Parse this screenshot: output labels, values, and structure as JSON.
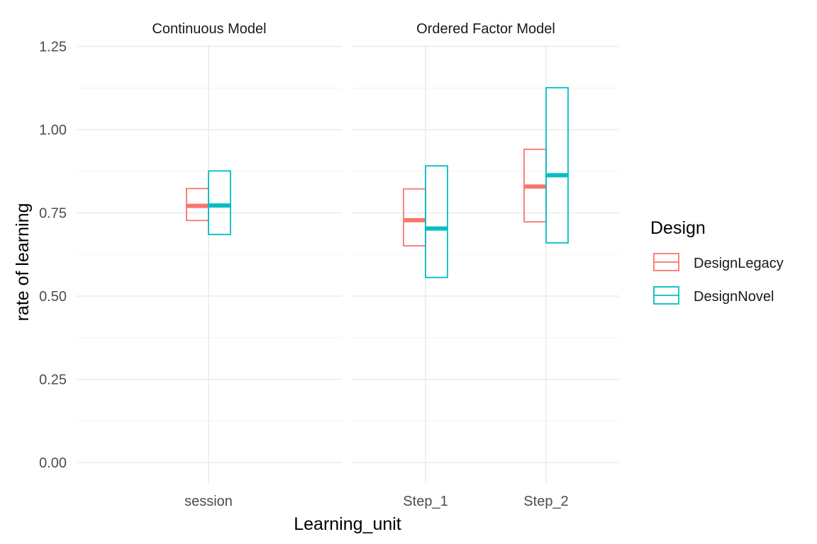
{
  "chart_data": {
    "type": "crossbar",
    "xlabel": "Learning_unit",
    "ylabel": "rate of learning",
    "ylim": [
      -0.06,
      1.25
    ],
    "y_ticks": [
      "0.00",
      "0.25",
      "0.50",
      "0.75",
      "1.00",
      "1.25"
    ],
    "y_tick_values": [
      0,
      0.25,
      0.5,
      0.75,
      1.0,
      1.25
    ],
    "grid": true,
    "legend": {
      "title": "Design",
      "position": "right",
      "entries": [
        {
          "name": "DesignLegacy",
          "color": "#F8766D"
        },
        {
          "name": "DesignNovel",
          "color": "#00BFC4"
        }
      ]
    },
    "facets": [
      {
        "title": "Continuous Model",
        "categories": [
          "session"
        ],
        "data": [
          {
            "category": "session",
            "series": "DesignLegacy",
            "lower": 0.727,
            "mid": 0.771,
            "upper": 0.823
          },
          {
            "category": "session",
            "series": "DesignNovel",
            "lower": 0.685,
            "mid": 0.772,
            "upper": 0.876
          }
        ]
      },
      {
        "title": "Ordered Factor Model",
        "categories": [
          "Step_1",
          "Step_2"
        ],
        "data": [
          {
            "category": "Step_1",
            "series": "DesignLegacy",
            "lower": 0.651,
            "mid": 0.728,
            "upper": 0.822
          },
          {
            "category": "Step_1",
            "series": "DesignNovel",
            "lower": 0.556,
            "mid": 0.703,
            "upper": 0.891
          },
          {
            "category": "Step_2",
            "series": "DesignLegacy",
            "lower": 0.723,
            "mid": 0.829,
            "upper": 0.941
          },
          {
            "category": "Step_2",
            "series": "DesignNovel",
            "lower": 0.66,
            "mid": 0.863,
            "upper": 1.126
          }
        ]
      }
    ]
  }
}
